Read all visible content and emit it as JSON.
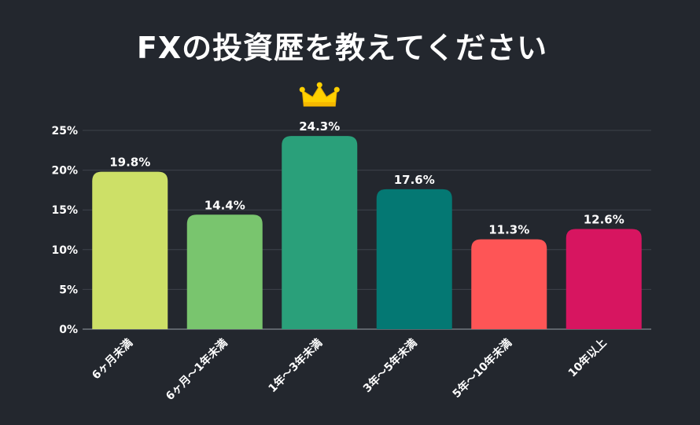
{
  "title": "FXの投資歴を教えてください",
  "chart_data": {
    "type": "bar",
    "title": "FXの投資歴を教えてください",
    "categories": [
      "6ヶ月未満",
      "6ヶ月〜1年未満",
      "1年〜3年未満",
      "3年〜5年未満",
      "5年〜10年未満",
      "10年以上"
    ],
    "values": [
      19.8,
      14.4,
      24.3,
      17.6,
      11.3,
      12.6
    ],
    "value_labels": [
      "19.8%",
      "14.4%",
      "24.3%",
      "17.6%",
      "11.3%",
      "12.6%"
    ],
    "colors": [
      "#cde067",
      "#79c56e",
      "#2aa07a",
      "#047873",
      "#fe5556",
      "#d71560"
    ],
    "ylim": [
      0,
      25
    ],
    "yticks": [
      0,
      5,
      10,
      15,
      20,
      25
    ],
    "ytick_labels": [
      "0%",
      "5%",
      "10%",
      "15%",
      "20%",
      "25%"
    ],
    "grid": true,
    "highlight_index": 2,
    "highlight_icon": "crown-icon",
    "highlight_color": "#ffd000"
  }
}
